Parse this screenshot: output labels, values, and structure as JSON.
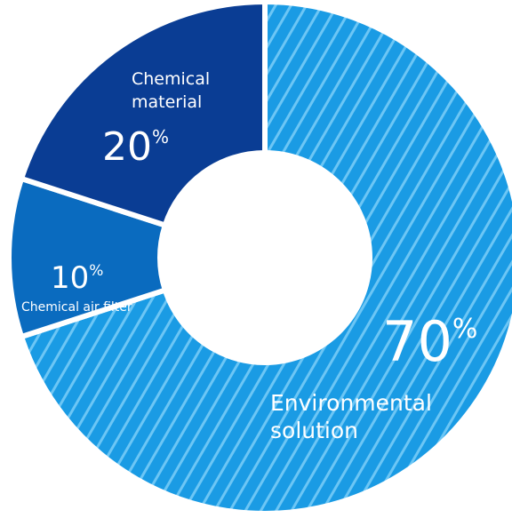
{
  "chart_data": {
    "type": "pie",
    "style": "donut",
    "slices": [
      {
        "name": "Environmental solution",
        "label_lines": [
          "Environmental",
          "solution"
        ],
        "value": 70,
        "value_text": "70",
        "unit": "%",
        "color": "#1a9be4",
        "pattern": "diagonal-stripes"
      },
      {
        "name": "Chemical air filter",
        "label_lines": [
          "Chemical air filter"
        ],
        "value": 10,
        "value_text": "10",
        "unit": "%",
        "color": "#0a6bbf",
        "pattern": "none"
      },
      {
        "name": "Chemical material",
        "label_lines": [
          "Chemical",
          "material"
        ],
        "value": 20,
        "value_text": "20",
        "unit": "%",
        "color": "#0a3d94",
        "pattern": "none"
      }
    ]
  }
}
